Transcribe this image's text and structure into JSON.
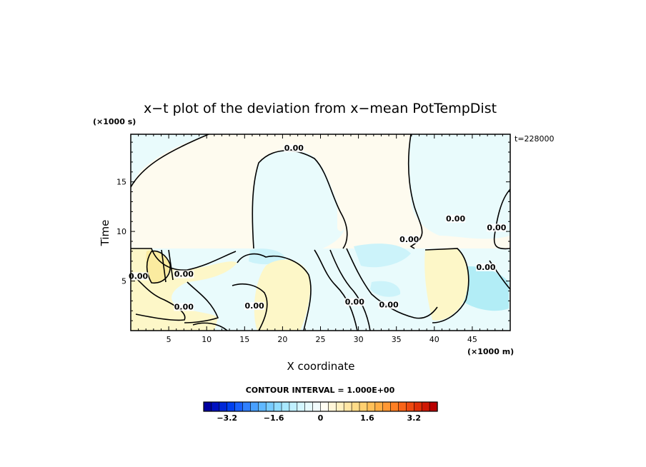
{
  "chart_data": {
    "type": "heatmap",
    "title": "x−t plot of the deviation from x−mean PotTempDist",
    "xlabel": "X coordinate",
    "ylabel": "Time",
    "x_unit": "(×1000 m)",
    "y_unit": "(×1000 s)",
    "time_label": "t=228000",
    "xlim": [
      0,
      50
    ],
    "ylim": [
      0,
      19.8
    ],
    "x_ticks": [
      5,
      10,
      15,
      20,
      25,
      30,
      35,
      40,
      45
    ],
    "y_ticks": [
      5,
      10,
      15
    ],
    "contour_interval_label": "CONTOUR INTERVAL = 1.000E+00",
    "contour_labels": [
      {
        "text": "0.00",
        "x": 21.5,
        "y": 18.2
      },
      {
        "text": "0.00",
        "x": 42.8,
        "y": 11.1
      },
      {
        "text": "0.00",
        "x": 36.7,
        "y": 9.0
      },
      {
        "text": "0.00",
        "x": 48.2,
        "y": 10.2
      },
      {
        "text": "0.00",
        "x": 7.0,
        "y": 5.5
      },
      {
        "text": "0.00",
        "x": 7.0,
        "y": 2.2
      },
      {
        "text": "0.00",
        "x": 1.0,
        "y": 5.3
      },
      {
        "text": "0.00",
        "x": 16.3,
        "y": 2.3
      },
      {
        "text": "0.00",
        "x": 29.5,
        "y": 2.7
      },
      {
        "text": "0.00",
        "x": 34.0,
        "y": 2.4
      },
      {
        "text": "0.00",
        "x": 46.8,
        "y": 6.2
      }
    ],
    "colorbar": {
      "min": -4.0,
      "max": 4.0,
      "tick_values": [
        -3.2,
        -1.6,
        0,
        1.6,
        3.2
      ],
      "tick_labels": [
        "−3.2",
        "−1.6",
        "0",
        "1.6",
        "3.2"
      ],
      "colors": [
        "#0000a0",
        "#0010c0",
        "#0028d8",
        "#0040f0",
        "#1860ff",
        "#3080ff",
        "#48a0ff",
        "#60b8ff",
        "#78ccff",
        "#90dcff",
        "#a8e8ff",
        "#c0f0ff",
        "#d4f6ff",
        "#e6fafe",
        "#f2fcfd",
        "#fffef4",
        "#fff6d8",
        "#fff0c0",
        "#ffe6a4",
        "#ffdc88",
        "#ffd070",
        "#ffc058",
        "#ffae44",
        "#ff9834",
        "#ff8024",
        "#f86418",
        "#ee4a10",
        "#e03008",
        "#d01804",
        "#b80000"
      ]
    },
    "fields": {
      "base_colors": {
        "warm_bg": "#fefbef",
        "cool_bg": "#e9fbfc",
        "light_cyan": "#ccf3fa",
        "cyan": "#b2edf6",
        "light_yellow": "#fdf7c8",
        "yellow": "#fbeba0"
      }
    }
  }
}
